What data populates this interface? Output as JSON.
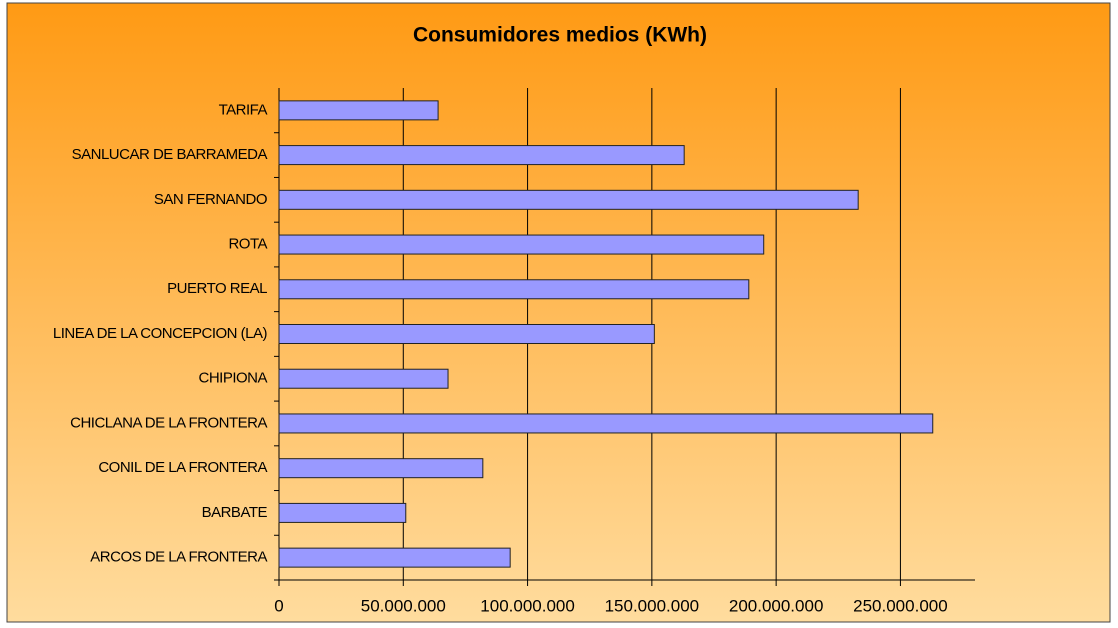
{
  "chart_data": {
    "type": "barh",
    "title": "Consumidores medios (KWh)",
    "categories": [
      "ARCOS DE LA FRONTERA",
      "BARBATE",
      "CONIL DE LA FRONTERA",
      "CHICLANA DE LA FRONTERA",
      "CHIPIONA",
      "LINEA DE LA CONCEPCION (LA)",
      "PUERTO REAL",
      "ROTA",
      "SAN FERNANDO",
      "SANLUCAR DE BARRAMEDA",
      "TARIFA"
    ],
    "values": [
      93000000,
      51000000,
      82000000,
      263000000,
      68000000,
      151000000,
      189000000,
      195000000,
      233000000,
      163000000,
      64000000
    ],
    "color": "#9999ff",
    "xlim": [
      0,
      280000000
    ],
    "xticks": [
      0,
      {
        "value": 50000000,
        "label": "50.000.000"
      },
      {
        "value": 100000000,
        "label": "100.000.000"
      },
      {
        "value": 150000000,
        "label": "150.000.000"
      },
      {
        "value": 200000000,
        "label": "200.000.000"
      },
      {
        "value": 250000000,
        "label": "250.000.000"
      }
    ],
    "grid": true
  }
}
